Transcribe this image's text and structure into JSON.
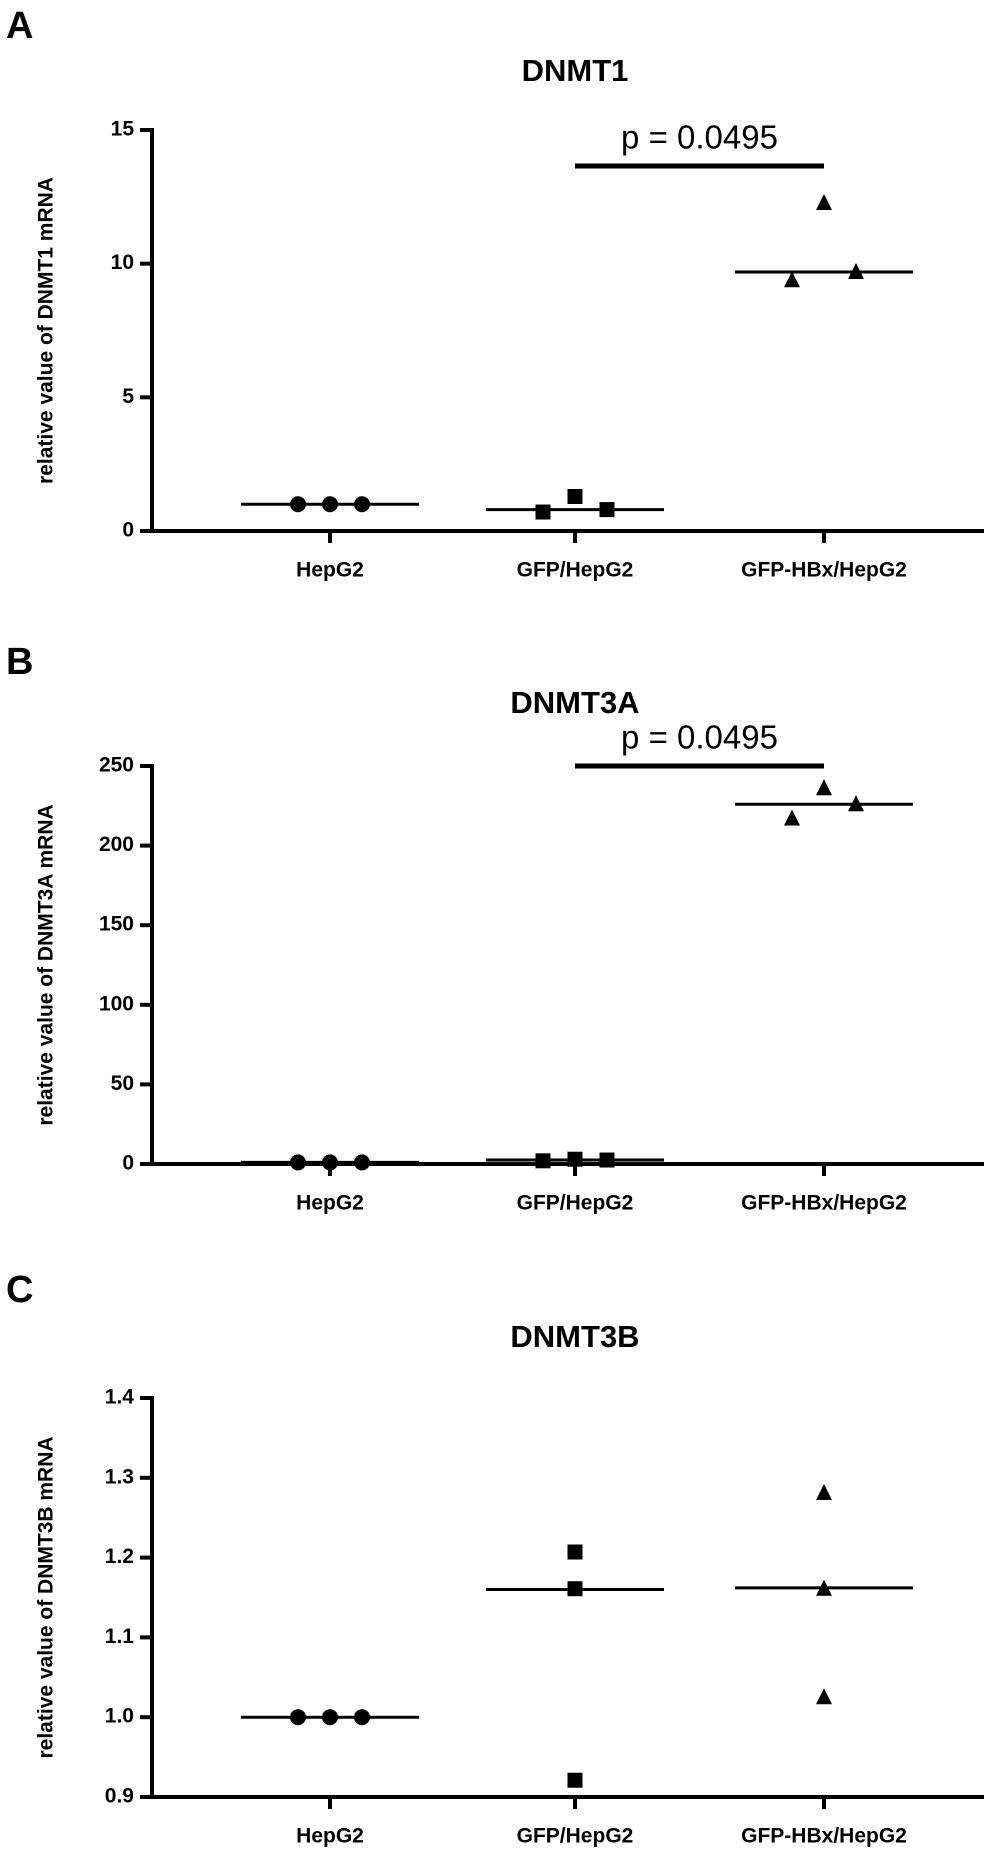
{
  "chart_data": [
    {
      "type": "scatter",
      "panel": "A",
      "title": "DNMT1",
      "ylabel": "relative value of DNMT1 mRNA",
      "categories": [
        "HepG2",
        "GFP/HepG2",
        "GFP-HBx/HepG2"
      ],
      "series": [
        {
          "marker": "circle",
          "color": "#000000",
          "values": [
            1,
            1,
            1
          ]
        },
        {
          "marker": "square",
          "color": "#000000",
          "values": [
            0.71,
            1.29,
            0.8
          ]
        },
        {
          "marker": "triangle",
          "color": "#000000",
          "values": [
            9.38,
            12.27,
            9.69
          ]
        }
      ],
      "medians": [
        1,
        0.8,
        9.69
      ],
      "annotation": "p = 0.0495",
      "ylim": [
        0,
        15
      ],
      "yticks": [
        0,
        5,
        10,
        15
      ]
    },
    {
      "type": "scatter",
      "panel": "B",
      "title": "DNMT3A",
      "ylabel": "relative value of DNMT3A mRNA",
      "categories": [
        "HepG2",
        "GFP/HepG2",
        "GFP-HBx/HepG2"
      ],
      "series": [
        {
          "marker": "circle",
          "color": "#000000",
          "values": [
            1,
            1,
            1
          ]
        },
        {
          "marker": "square",
          "color": "#000000",
          "values": [
            2,
            3,
            2.5
          ]
        },
        {
          "marker": "triangle",
          "color": "#000000",
          "values": [
            217,
            236,
            226
          ]
        }
      ],
      "medians": [
        1,
        2.5,
        226
      ],
      "annotation": "p = 0.0495",
      "ylim": [
        0,
        250
      ],
      "yticks": [
        0,
        50,
        100,
        150,
        200,
        250
      ]
    },
    {
      "type": "scatter",
      "panel": "C",
      "title": "DNMT3B",
      "ylabel": "relative value of DNMT3B mRNA",
      "categories": [
        "HepG2",
        "GFP/HepG2",
        "GFP-HBx/HepG2"
      ],
      "series": [
        {
          "marker": "circle",
          "color": "#000000",
          "values": [
            1,
            1,
            1
          ]
        },
        {
          "marker": "square",
          "color": "#000000",
          "values": [
            0.921,
            1.207,
            1.161
          ]
        },
        {
          "marker": "triangle",
          "color": "#000000",
          "values": [
            1.025,
            1.281,
            1.161
          ]
        }
      ],
      "medians": [
        1,
        1.16,
        1.162
      ],
      "ylim": [
        0.9,
        1.4
      ],
      "yticks": [
        {
          "value": 0.9,
          "label": "0.9"
        },
        {
          "value": 1.0,
          "label": "1.0"
        },
        {
          "value": 1.1,
          "label": "1.1"
        },
        {
          "value": 1.2,
          "label": "1.2"
        },
        {
          "value": 1.3,
          "label": "1.3"
        },
        {
          "value": 1.4,
          "label": "1.4"
        }
      ]
    }
  ]
}
